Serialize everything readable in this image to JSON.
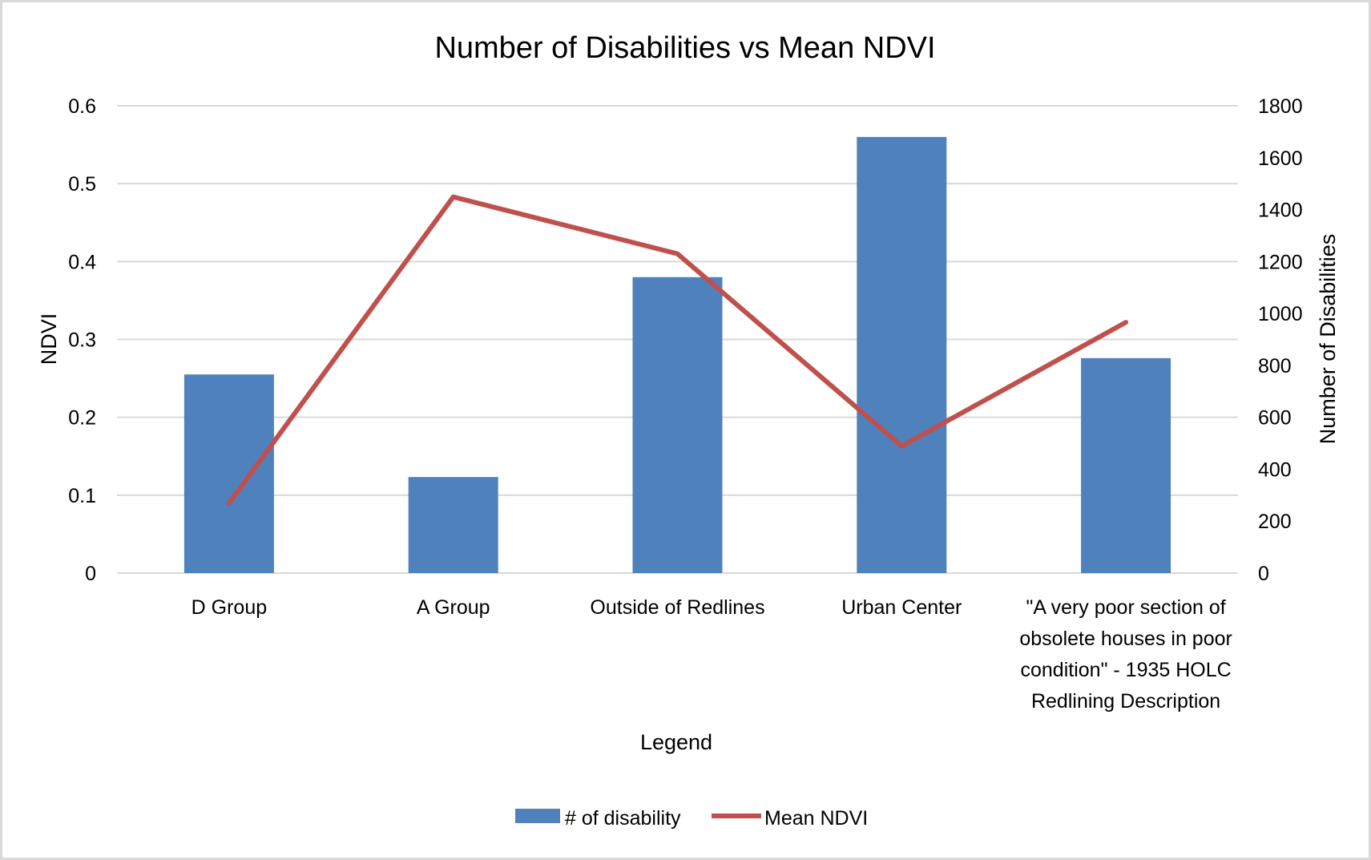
{
  "chart_data": {
    "type": "bar+line",
    "title": "Number of Disabilities vs Mean NDVI",
    "xlabel": "Legend",
    "ylabel_left": "NDVI",
    "ylabel_right": "Number of Disabilities",
    "categories": [
      [
        "D Group"
      ],
      [
        "A Group"
      ],
      [
        "Outside of Redlines"
      ],
      [
        "Urban Center"
      ],
      [
        "\"A very poor section of",
        "obsolete houses in poor",
        "condition\" - 1935 HOLC",
        "Redlining Description"
      ]
    ],
    "ylim_left": [
      0,
      0.6
    ],
    "yticks_left": [
      "0",
      "0.1",
      "0.2",
      "0.3",
      "0.4",
      "0.5",
      "0.6"
    ],
    "ylim_right": [
      0,
      1800
    ],
    "yticks_right": [
      "0",
      "200",
      "400",
      "600",
      "800",
      "1000",
      "1200",
      "1400",
      "1600",
      "1800"
    ],
    "grid": true,
    "legend_position": "bottom",
    "series": [
      {
        "name": "# of disability",
        "type": "bar",
        "axis": "right",
        "color": "#4f81bd",
        "values": [
          765,
          370,
          1140,
          1680,
          828
        ]
      },
      {
        "name": "Mean NDVI",
        "type": "line",
        "axis": "left",
        "color": "#c0504d",
        "values": [
          0.09,
          0.483,
          0.41,
          0.163,
          0.322
        ]
      }
    ]
  }
}
